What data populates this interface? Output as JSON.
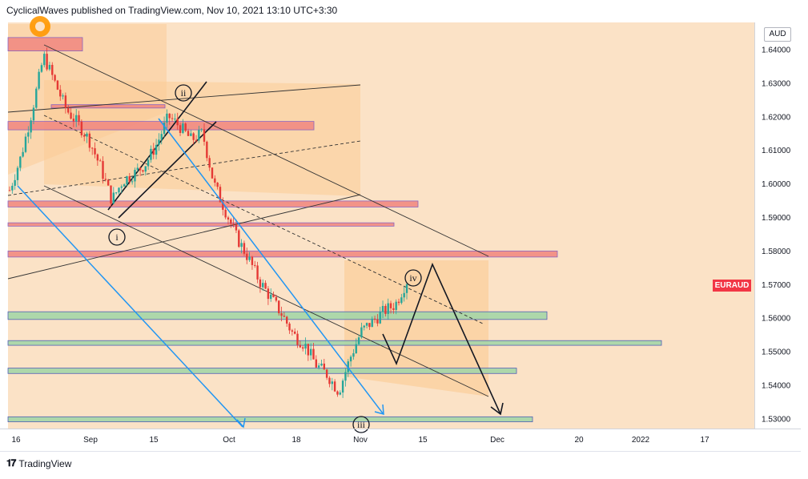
{
  "header": {
    "publisher_line": "CyclicalWaves published on TradingView.com, Nov 10, 2021 13:10 UTC+3:30"
  },
  "footer": {
    "brand": "TradingView",
    "logo_icon": "tradingview-logo-icon"
  },
  "colors": {
    "candle_up": "#26a69a",
    "candle_down": "#e53935",
    "resistance_zone": "#f28b82",
    "support_zone": "#a5d6a7",
    "fib_channel_fill": "#ffcc80",
    "background": "#fbe2c6",
    "projection_arrow": "#131722",
    "trend_arrow": "#2196f3",
    "symbol_badge": "#f23645"
  },
  "chart_data": {
    "type": "candlestick",
    "symbol": "EURAUD",
    "currency": "AUD",
    "ylim": [
      1.527,
      1.648
    ],
    "y_ticks": [
      "1.64000",
      "1.63000",
      "1.62000",
      "1.61000",
      "1.60000",
      "1.59000",
      "1.58000",
      "1.57000",
      "1.56000",
      "1.55000",
      "1.54000",
      "1.53000"
    ],
    "x_ticks": [
      "16",
      "Sep",
      "15",
      "Oct",
      "18",
      "Nov",
      "15",
      "Dec",
      "20",
      "2022",
      "17"
    ],
    "wave_labels": [
      "i",
      "ii",
      "iii",
      "iv"
    ],
    "close_series_approx": [
      [
        "Aug 16",
        1.598
      ],
      [
        "Aug 18",
        1.608
      ],
      [
        "Aug 19",
        1.622
      ],
      [
        "Aug 20",
        1.638
      ],
      [
        "Aug 23",
        1.63
      ],
      [
        "Aug 25",
        1.622
      ],
      [
        "Aug 27",
        1.618
      ],
      [
        "Aug 31",
        1.613
      ],
      [
        "Sep 2",
        1.605
      ],
      [
        "Sep 6",
        1.595
      ],
      [
        "Sep 8",
        1.601
      ],
      [
        "Sep 10",
        1.603
      ],
      [
        "Sep 14",
        1.606
      ],
      [
        "Sep 16",
        1.612
      ],
      [
        "Sep 20",
        1.62
      ],
      [
        "Sep 22",
        1.617
      ],
      [
        "Sep 24",
        1.613
      ],
      [
        "Sep 28",
        1.615
      ],
      [
        "Sep 30",
        1.6
      ],
      [
        "Oct 4",
        1.592
      ],
      [
        "Oct 6",
        1.584
      ],
      [
        "Oct 8",
        1.578
      ],
      [
        "Oct 12",
        1.571
      ],
      [
        "Oct 14",
        1.566
      ],
      [
        "Oct 18",
        1.561
      ],
      [
        "Oct 20",
        1.555
      ],
      [
        "Oct 22",
        1.552
      ],
      [
        "Oct 26",
        1.546
      ],
      [
        "Oct 28",
        1.543
      ],
      [
        "Nov 1",
        1.538
      ],
      [
        "Nov 2",
        1.548
      ],
      [
        "Nov 3",
        1.556
      ],
      [
        "Nov 4",
        1.559
      ],
      [
        "Nov 5",
        1.562
      ],
      [
        "Nov 8",
        1.564
      ],
      [
        "Nov 10",
        1.571
      ]
    ],
    "resistance_zones": [
      {
        "from": 1.6395,
        "to": 1.6435
      },
      {
        "from": 1.6225,
        "to": 1.6235
      },
      {
        "from": 1.616,
        "to": 1.6185
      },
      {
        "from": 1.593,
        "to": 1.5948
      },
      {
        "from": 1.5873,
        "to": 1.5883
      },
      {
        "from": 1.5781,
        "to": 1.5799
      }
    ],
    "support_zones": [
      {
        "from": 1.5595,
        "to": 1.5618
      },
      {
        "from": 1.5518,
        "to": 1.5532
      },
      {
        "from": 1.5434,
        "to": 1.545
      },
      {
        "from": 1.529,
        "to": 1.5305
      }
    ]
  }
}
